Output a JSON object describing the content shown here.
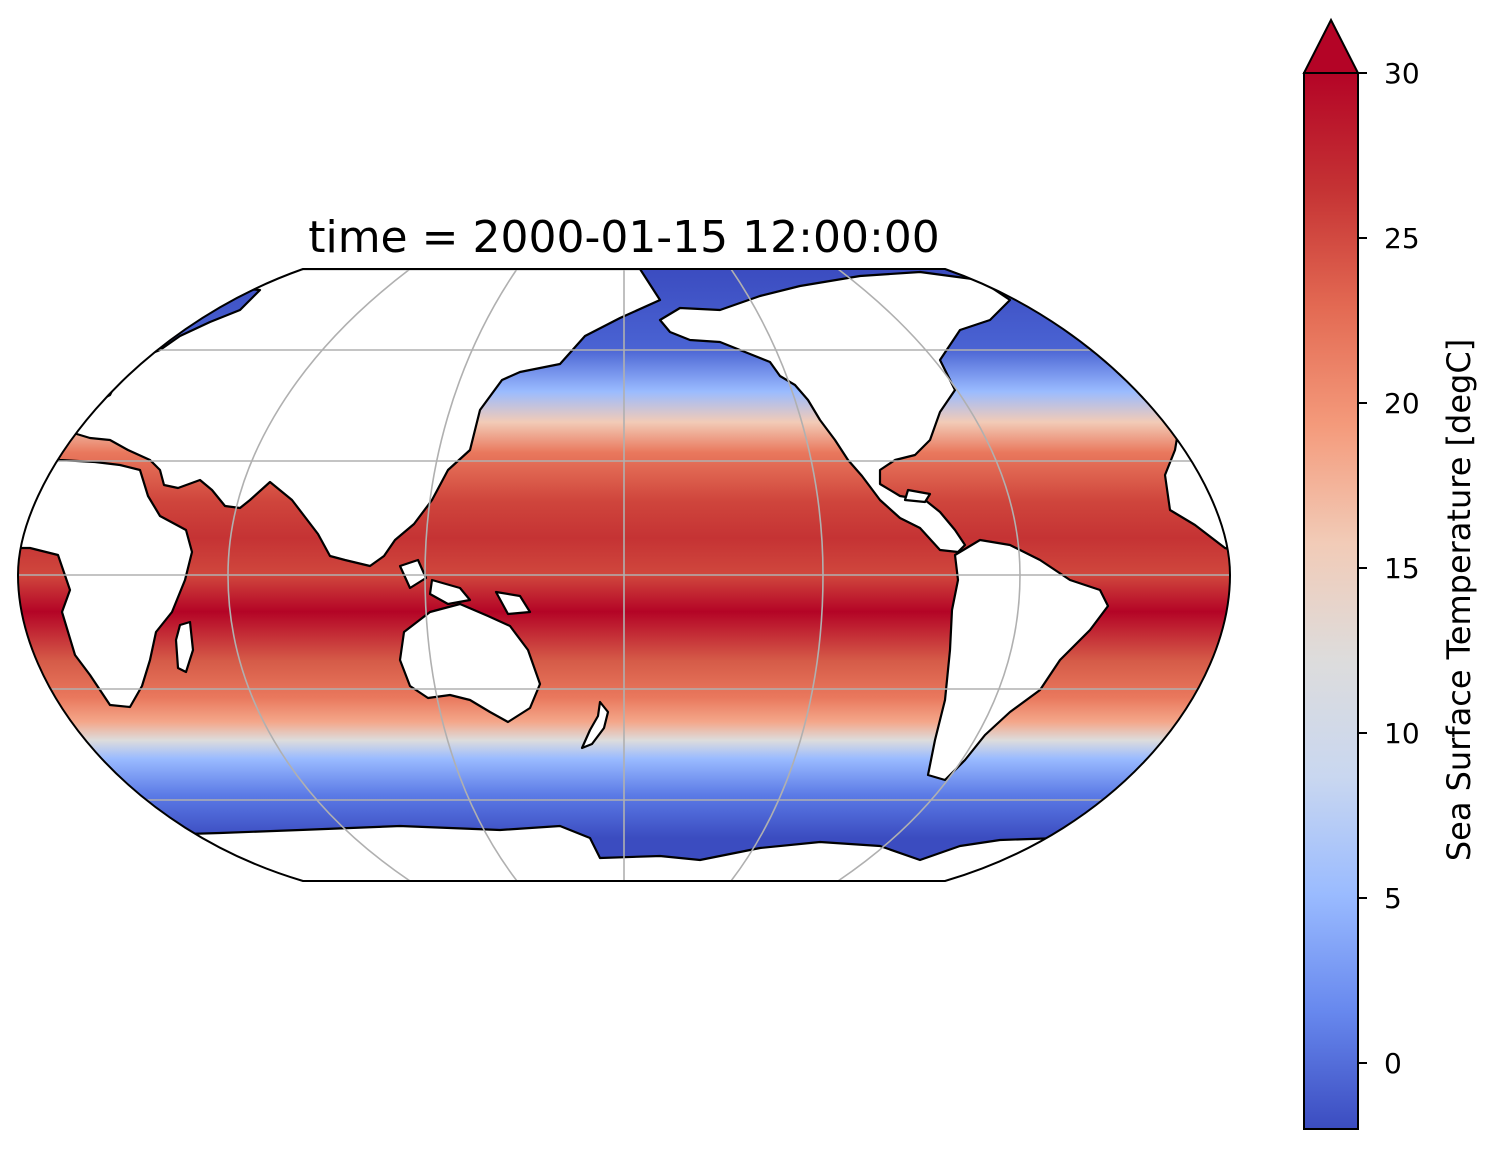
{
  "title": "time = 2000-01-15 12:00:00",
  "map": {
    "projection": "Robinson",
    "central_longitude": 180,
    "variable": "Sea Surface Temperature",
    "gridlines": true,
    "coastlines": true,
    "colors": {
      "land": "#ffffff",
      "coastline": "#000000",
      "gridline": "#b0b0b0"
    }
  },
  "colorbar": {
    "label": "Sea Surface Temperature [degC]",
    "colormap": "coolwarm",
    "vmin": -2,
    "vmax": 30,
    "extend": "max",
    "ticks": [
      {
        "value": 30,
        "label": "30"
      },
      {
        "value": 25,
        "label": "25"
      },
      {
        "value": 20,
        "label": "20"
      },
      {
        "value": 15,
        "label": "15"
      },
      {
        "value": 10,
        "label": "10"
      },
      {
        "value": 5,
        "label": "5"
      },
      {
        "value": 0,
        "label": "0"
      }
    ],
    "colors": [
      "#3b4cc0",
      "#6788ee",
      "#9abbff",
      "#c9d7f0",
      "#dddcdc",
      "#f2cbb7",
      "#f49a7b",
      "#e36a53",
      "#c53334",
      "#b40426"
    ]
  }
}
